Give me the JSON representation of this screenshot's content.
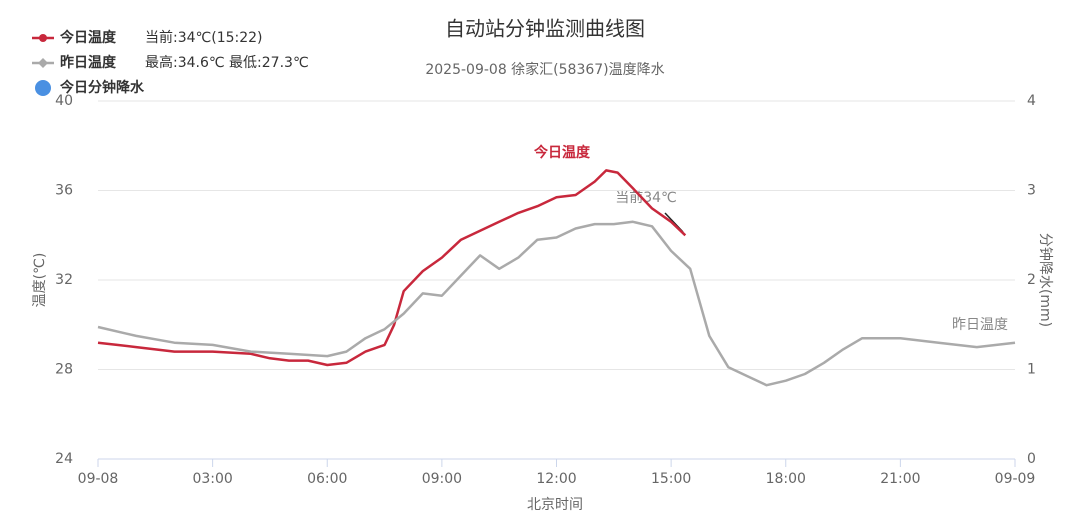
{
  "chart_data": {
    "type": "line",
    "title": "自动站分钟监测曲线图",
    "subtitle": "2025-09-08 徐家汇(58367)温度降水",
    "x_label": "北京时间",
    "y_label": "温度(℃)",
    "y2_label": "分钟降水(mm)",
    "xlim": [
      0,
      24
    ],
    "xticks": [
      {
        "value": 0,
        "label": "09-08"
      },
      {
        "value": 3,
        "label": "03:00"
      },
      {
        "value": 6,
        "label": "06:00"
      },
      {
        "value": 9,
        "label": "09:00"
      },
      {
        "value": 12,
        "label": "12:00"
      },
      {
        "value": 15,
        "label": "15:00"
      },
      {
        "value": 18,
        "label": "18:00"
      },
      {
        "value": 21,
        "label": "21:00"
      },
      {
        "value": 24,
        "label": "09-09"
      }
    ],
    "ylim": [
      24,
      40
    ],
    "yticks": [
      24,
      28,
      32,
      36,
      40
    ],
    "y2lim": [
      0,
      4
    ],
    "y2ticks": [
      0,
      1,
      2,
      3,
      4
    ],
    "grid": true,
    "series": [
      {
        "name": "今日温度",
        "note": "当前:34℃(15:22)",
        "color": "#c8283c",
        "x": [
          0,
          0.5,
          1,
          1.5,
          2,
          3,
          4,
          4.5,
          5,
          5.5,
          6,
          6.5,
          7,
          7.5,
          7.75,
          8,
          8.5,
          9,
          9.5,
          10,
          10.5,
          11,
          11.5,
          12,
          12.5,
          13,
          13.3,
          13.6,
          14,
          14.5,
          15,
          15.37
        ],
        "values": [
          29.2,
          29.1,
          29.0,
          28.9,
          28.8,
          28.8,
          28.7,
          28.5,
          28.4,
          28.4,
          28.2,
          28.3,
          28.8,
          29.1,
          30.0,
          31.5,
          32.4,
          33.0,
          33.8,
          34.2,
          34.6,
          35.0,
          35.3,
          35.7,
          35.8,
          36.4,
          36.9,
          36.8,
          36.1,
          35.2,
          34.6,
          34.0
        ]
      },
      {
        "name": "昨日温度",
        "note": "最高:34.6℃ 最低:27.3℃",
        "color": "#aaaaaa",
        "x": [
          0,
          1,
          2,
          3,
          4,
          5,
          6,
          6.5,
          7,
          7.5,
          8,
          8.5,
          9,
          9.5,
          10,
          10.5,
          11,
          11.5,
          12,
          12.5,
          13,
          13.5,
          14,
          14.5,
          15,
          15.5,
          16,
          16.5,
          17,
          17.5,
          18,
          18.5,
          19,
          19.5,
          20,
          21,
          22,
          23,
          24
        ],
        "values": [
          29.9,
          29.5,
          29.2,
          29.1,
          28.8,
          28.7,
          28.6,
          28.8,
          29.4,
          29.8,
          30.5,
          31.4,
          31.3,
          32.2,
          33.1,
          32.5,
          33.0,
          33.8,
          33.9,
          34.3,
          34.5,
          34.5,
          34.6,
          34.4,
          33.3,
          32.5,
          29.5,
          28.1,
          27.7,
          27.3,
          27.5,
          27.8,
          28.3,
          28.9,
          29.4,
          29.4,
          29.2,
          29.0,
          29.2
        ]
      },
      {
        "name": "今日分钟降水",
        "color": "#4a90e2",
        "axis": "y2",
        "x": [],
        "values": []
      }
    ],
    "annotations": [
      "今日温度",
      "当前34℃",
      "昨日温度"
    ]
  }
}
